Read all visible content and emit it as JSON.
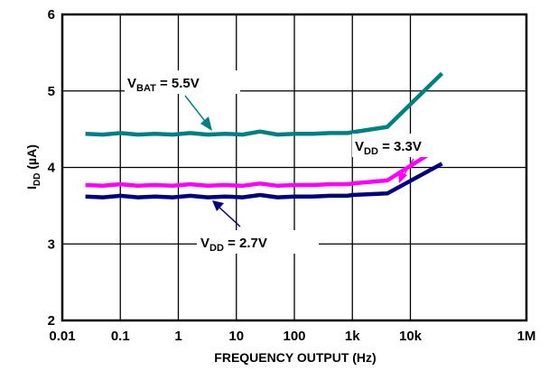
{
  "chart_data": {
    "type": "line",
    "xlabel": "FREQUENCY OUTPUT (Hz)",
    "ylabel": {
      "main": "I",
      "sub": "DD",
      "unit": " (µA)"
    },
    "x_scale": "log",
    "xlim": [
      0.01,
      1000000
    ],
    "ylim": [
      2,
      6
    ],
    "x_ticks": [
      {
        "value": 0.01,
        "label": "0.01"
      },
      {
        "value": 0.1,
        "label": "0.1"
      },
      {
        "value": 1,
        "label": "1"
      },
      {
        "value": 10,
        "label": "10"
      },
      {
        "value": 100,
        "label": "100"
      },
      {
        "value": 1000,
        "label": "1k"
      },
      {
        "value": 10000,
        "label": "10k"
      },
      {
        "value": 1000000,
        "label": "1M"
      }
    ],
    "y_ticks": [
      {
        "value": 2,
        "label": "2"
      },
      {
        "value": 3,
        "label": "3"
      },
      {
        "value": 4,
        "label": "4"
      },
      {
        "value": 5,
        "label": "5"
      },
      {
        "value": 6,
        "label": "6"
      }
    ],
    "grid": true,
    "legend": "none",
    "series": [
      {
        "key": "vbat",
        "color": "#008080",
        "x": [
          0.025,
          0.05,
          0.1,
          0.2,
          0.4,
          0.8,
          1.6,
          3.2,
          6.4,
          12.8,
          25.6,
          51.2,
          102.4,
          204.8,
          409.6,
          819.2,
          1000,
          4000,
          35000
        ],
        "y": [
          4.44,
          4.43,
          4.45,
          4.43,
          4.44,
          4.43,
          4.45,
          4.43,
          4.44,
          4.43,
          4.47,
          4.43,
          4.44,
          4.44,
          4.45,
          4.45,
          4.46,
          4.53,
          5.23
        ]
      },
      {
        "key": "vdd33",
        "color": "#ff00ff",
        "x": [
          0.025,
          0.05,
          0.1,
          0.2,
          0.4,
          0.8,
          1.6,
          3.2,
          6.4,
          12.8,
          25.6,
          51.2,
          102.4,
          204.8,
          409.6,
          819.2,
          1000,
          4000,
          35000
        ],
        "y": [
          3.77,
          3.76,
          3.78,
          3.76,
          3.77,
          3.76,
          3.78,
          3.76,
          3.77,
          3.76,
          3.79,
          3.76,
          3.77,
          3.77,
          3.78,
          3.78,
          3.79,
          3.83,
          4.28
        ]
      },
      {
        "key": "vdd27",
        "color": "#000080",
        "x": [
          0.025,
          0.05,
          0.1,
          0.2,
          0.4,
          0.8,
          1.6,
          3.2,
          6.4,
          12.8,
          25.6,
          51.2,
          102.4,
          204.8,
          409.6,
          819.2,
          1000,
          4000,
          35000
        ],
        "y": [
          3.62,
          3.61,
          3.63,
          3.61,
          3.62,
          3.61,
          3.63,
          3.61,
          3.62,
          3.61,
          3.64,
          3.61,
          3.62,
          3.62,
          3.63,
          3.63,
          3.64,
          3.66,
          4.05
        ]
      }
    ],
    "annotations": [
      {
        "main": "V",
        "sub": "BAT",
        "rest": " = 5.5V"
      },
      {
        "main": "V",
        "sub": "DD",
        "rest": " = 3.3V"
      },
      {
        "main": "V",
        "sub": "DD",
        "rest": " = 2.7V"
      }
    ]
  }
}
